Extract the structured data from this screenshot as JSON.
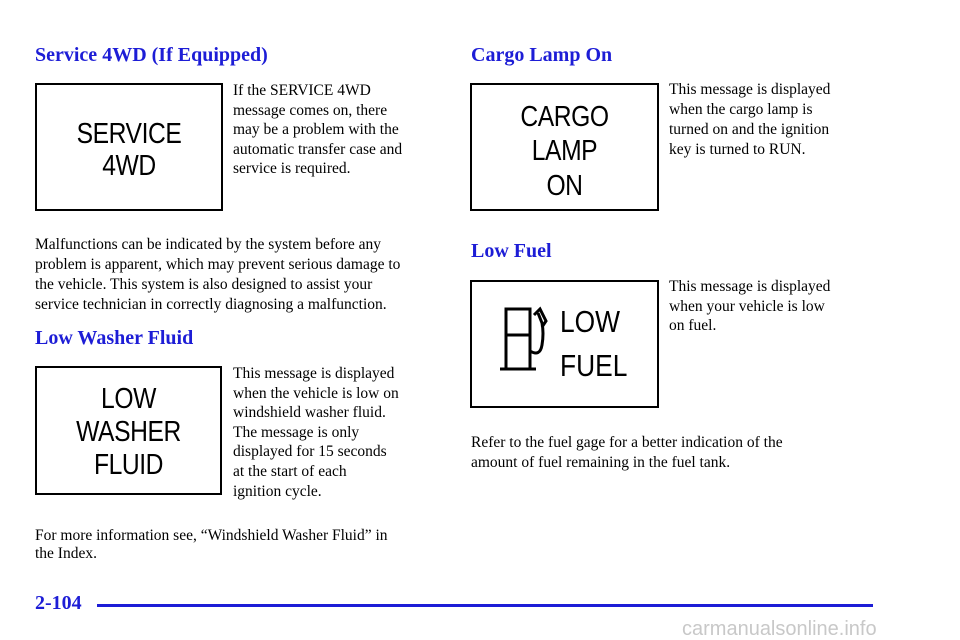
{
  "sections": [
    {
      "heading": "Service 4WD (If Equipped)",
      "display": [
        "SERVICE",
        "4WD"
      ],
      "description": [
        "If the SERVICE 4WD",
        "message comes on, there",
        "may be a problem with the",
        "automatic transfer case and",
        "service is required."
      ],
      "note": [
        "Malfunctions can be indicated by the system before any",
        "problem is apparent, which may prevent serious damage to",
        "the vehicle. This system is also designed to assist your",
        "service technician in correctly diagnosing a malfunction."
      ]
    },
    {
      "heading": "Low Washer Fluid",
      "display": [
        "LOW",
        "WASHER",
        "FLUID"
      ],
      "description": [
        "This message is displayed",
        "when the vehicle is low on",
        "windshield washer fluid.",
        "The message is only",
        "displayed for 15 seconds",
        "at the start of each",
        "ignition cycle."
      ],
      "note": [
        "For more information see, “Windshield Washer Fluid” in",
        "the Index."
      ]
    },
    {
      "heading": "Cargo Lamp On",
      "display": [
        "CARGO",
        "LAMP",
        "ON"
      ],
      "description": [
        "This message is displayed",
        "when the cargo lamp is",
        "turned on and the ignition",
        "key is turned to RUN."
      ]
    },
    {
      "heading": "Low Fuel",
      "display": [
        "LOW",
        "FUEL"
      ],
      "description": [
        "This message is displayed",
        "when your vehicle is low",
        "on fuel."
      ],
      "note": [
        "Refer to the fuel gage for a better indication of the",
        "amount of fuel remaining in the fuel tank."
      ]
    }
  ],
  "footer": {
    "page_number": "2-104",
    "watermark": "carmanualsonline.info"
  }
}
